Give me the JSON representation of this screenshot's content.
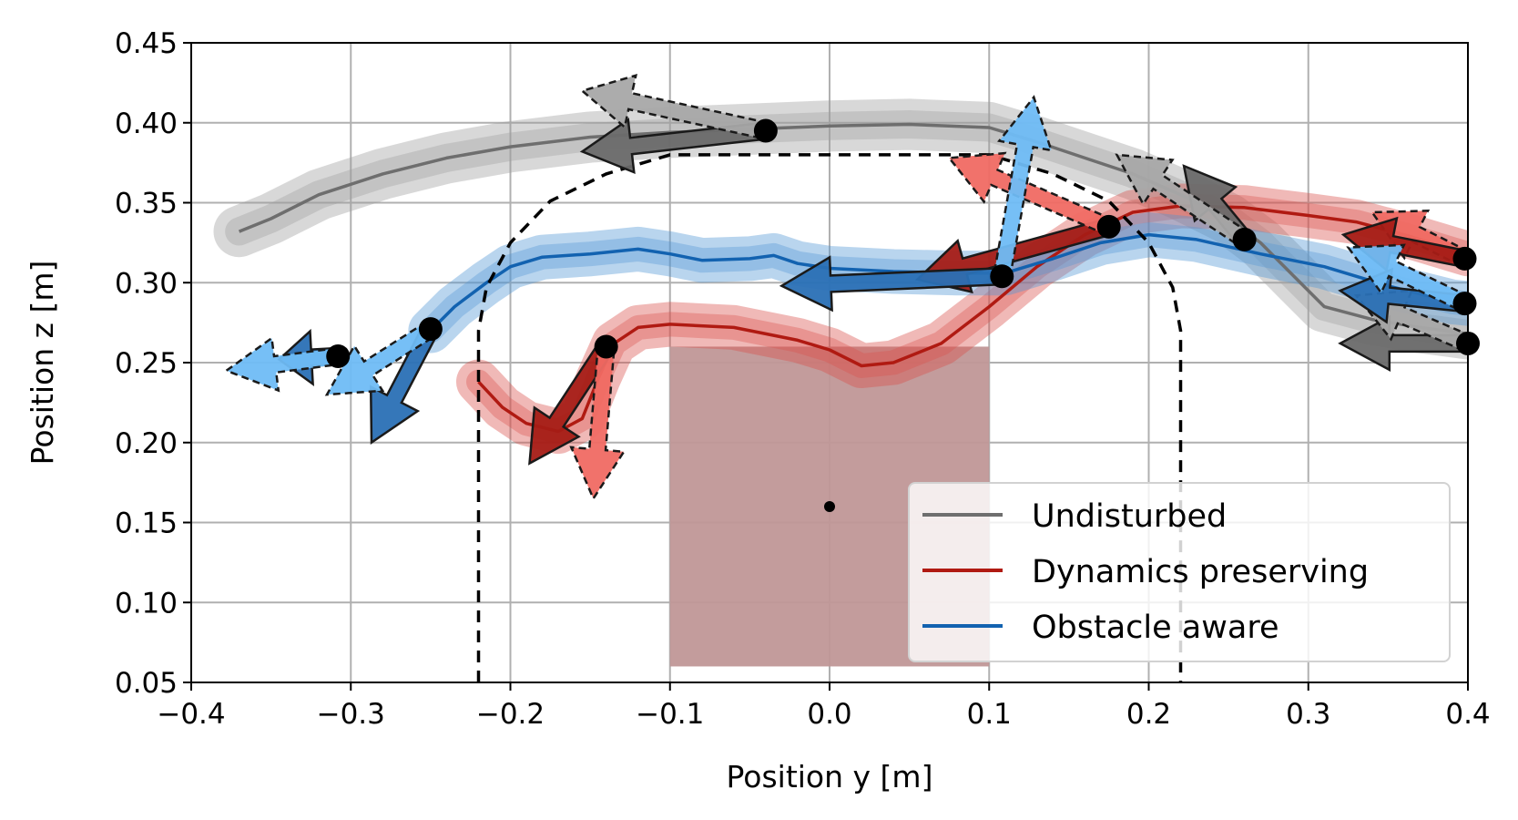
{
  "chart_data": {
    "type": "line",
    "xlabel": "Position y [m]",
    "ylabel": "Position z [m]",
    "xlim": [
      -0.4,
      0.4
    ],
    "ylim": [
      0.05,
      0.45
    ],
    "xticks": [
      -0.4,
      -0.3,
      -0.2,
      -0.1,
      0.0,
      0.1,
      0.2,
      0.3,
      0.4
    ],
    "xtick_labels": [
      "−0.4",
      "−0.3",
      "−0.2",
      "−0.1",
      "0.0",
      "0.1",
      "0.2",
      "0.3",
      "0.4"
    ],
    "yticks": [
      0.05,
      0.1,
      0.15,
      0.2,
      0.25,
      0.3,
      0.35,
      0.4,
      0.45
    ],
    "ytick_labels": [
      "0.05",
      "0.10",
      "0.15",
      "0.20",
      "0.25",
      "0.30",
      "0.35",
      "0.40",
      "0.45"
    ],
    "grid": true,
    "legend_position": "bottom-right",
    "colors": {
      "undisturbed": "#6e6e6e",
      "dynamics": "#b01a12",
      "obstacle": "#1262b0",
      "undisturbed_band": "#9e9e9e",
      "dynamics_band": "#d9504a",
      "obstacle_band": "#4f96d4",
      "arrow_gray_dark": "#6a6a6a",
      "arrow_gray_light": "#a8a8a8",
      "arrow_red_dark": "#a51c16",
      "arrow_red_light": "#f06a63",
      "arrow_blue_dark": "#2a70b5",
      "arrow_blue_light": "#6fbcf5",
      "obstacle_fill": "#c09797"
    },
    "obstacle": {
      "y_range": [
        -0.1,
        0.1
      ],
      "z_range": [
        0.06,
        0.26
      ],
      "center": [
        0.0,
        0.16
      ]
    },
    "boundary": [
      [
        -0.22,
        0.05
      ],
      [
        -0.22,
        0.27
      ],
      [
        -0.215,
        0.297
      ],
      [
        -0.2,
        0.325
      ],
      [
        -0.175,
        0.351
      ],
      [
        -0.14,
        0.368
      ],
      [
        -0.1,
        0.38
      ],
      [
        0.1,
        0.38
      ],
      [
        0.14,
        0.368
      ],
      [
        0.175,
        0.351
      ],
      [
        0.2,
        0.325
      ],
      [
        0.215,
        0.297
      ],
      [
        0.22,
        0.27
      ],
      [
        0.22,
        0.05
      ]
    ],
    "series": [
      {
        "name": "Undisturbed",
        "color_key": "undisturbed",
        "band_key": "undisturbed_band",
        "band_width": 0.016,
        "points": [
          [
            -0.37,
            0.332
          ],
          [
            -0.35,
            0.34
          ],
          [
            -0.32,
            0.355
          ],
          [
            -0.28,
            0.368
          ],
          [
            -0.24,
            0.378
          ],
          [
            -0.2,
            0.385
          ],
          [
            -0.15,
            0.391
          ],
          [
            -0.1,
            0.394
          ],
          [
            -0.05,
            0.396
          ],
          [
            0.0,
            0.398
          ],
          [
            0.05,
            0.399
          ],
          [
            0.1,
            0.397
          ],
          [
            0.13,
            0.388
          ],
          [
            0.16,
            0.378
          ],
          [
            0.19,
            0.368
          ],
          [
            0.22,
            0.355
          ],
          [
            0.25,
            0.34
          ],
          [
            0.27,
            0.325
          ],
          [
            0.29,
            0.305
          ],
          [
            0.31,
            0.285
          ],
          [
            0.34,
            0.277
          ],
          [
            0.37,
            0.272
          ],
          [
            0.4,
            0.268
          ]
        ]
      },
      {
        "name": "Dynamics preserving",
        "color_key": "dynamics",
        "band_key": "dynamics_band",
        "band_width": 0.014,
        "points": [
          [
            -0.22,
            0.238
          ],
          [
            -0.205,
            0.222
          ],
          [
            -0.19,
            0.212
          ],
          [
            -0.17,
            0.207
          ],
          [
            -0.155,
            0.215
          ],
          [
            -0.145,
            0.24
          ],
          [
            -0.135,
            0.262
          ],
          [
            -0.12,
            0.272
          ],
          [
            -0.1,
            0.274
          ],
          [
            -0.06,
            0.272
          ],
          [
            -0.02,
            0.264
          ],
          [
            0.0,
            0.258
          ],
          [
            0.02,
            0.248
          ],
          [
            0.04,
            0.25
          ],
          [
            0.07,
            0.262
          ],
          [
            0.1,
            0.285
          ],
          [
            0.13,
            0.31
          ],
          [
            0.16,
            0.33
          ],
          [
            0.19,
            0.344
          ],
          [
            0.22,
            0.348
          ],
          [
            0.26,
            0.347
          ],
          [
            0.3,
            0.342
          ],
          [
            0.33,
            0.338
          ],
          [
            0.36,
            0.33
          ],
          [
            0.4,
            0.318
          ]
        ]
      },
      {
        "name": "Obstacle aware",
        "color_key": "obstacle",
        "band_key": "obstacle_band",
        "band_width": 0.014,
        "points": [
          [
            -0.25,
            0.27
          ],
          [
            -0.235,
            0.285
          ],
          [
            -0.215,
            0.3
          ],
          [
            -0.2,
            0.31
          ],
          [
            -0.18,
            0.316
          ],
          [
            -0.15,
            0.318
          ],
          [
            -0.12,
            0.321
          ],
          [
            -0.1,
            0.318
          ],
          [
            -0.08,
            0.314
          ],
          [
            -0.05,
            0.315
          ],
          [
            -0.035,
            0.317
          ],
          [
            -0.02,
            0.312
          ],
          [
            0.0,
            0.309
          ],
          [
            0.04,
            0.307
          ],
          [
            0.08,
            0.306
          ],
          [
            0.11,
            0.306
          ],
          [
            0.14,
            0.315
          ],
          [
            0.17,
            0.325
          ],
          [
            0.2,
            0.33
          ],
          [
            0.23,
            0.327
          ],
          [
            0.27,
            0.318
          ],
          [
            0.31,
            0.31
          ],
          [
            0.35,
            0.298
          ],
          [
            0.39,
            0.288
          ],
          [
            0.4,
            0.287
          ]
        ]
      }
    ],
    "arrows": [
      {
        "from": [
          -0.04,
          0.395
        ],
        "to": [
          -0.155,
          0.382
        ],
        "shade": "arrow_gray_dark",
        "dashed": false
      },
      {
        "from": [
          -0.04,
          0.395
        ],
        "to": [
          -0.155,
          0.42
        ],
        "shade": "arrow_gray_light",
        "dashed": true
      },
      {
        "from": [
          0.26,
          0.327
        ],
        "to": [
          0.222,
          0.373
        ],
        "shade": "arrow_gray_dark",
        "dashed": false
      },
      {
        "from": [
          0.26,
          0.327
        ],
        "to": [
          0.18,
          0.38
        ],
        "shade": "arrow_gray_light",
        "dashed": true
      },
      {
        "from": [
          0.4,
          0.262
        ],
        "to": [
          0.32,
          0.262
        ],
        "shade": "arrow_gray_dark",
        "dashed": false
      },
      {
        "from": [
          0.4,
          0.262
        ],
        "to": [
          0.33,
          0.292
        ],
        "shade": "arrow_gray_light",
        "dashed": true
      },
      {
        "from": [
          0.175,
          0.335
        ],
        "to": [
          0.055,
          0.302
        ],
        "shade": "arrow_red_dark",
        "dashed": false
      },
      {
        "from": [
          0.175,
          0.335
        ],
        "to": [
          0.075,
          0.378
        ],
        "shade": "arrow_red_light",
        "dashed": true
      },
      {
        "from": [
          0.108,
          0.304
        ],
        "to": [
          -0.03,
          0.298
        ],
        "shade": "arrow_blue_dark",
        "dashed": false
      },
      {
        "from": [
          0.108,
          0.304
        ],
        "to": [
          0.128,
          0.416
        ],
        "shade": "arrow_blue_light",
        "dashed": true
      },
      {
        "from": [
          -0.14,
          0.26
        ],
        "to": [
          -0.188,
          0.187
        ],
        "shade": "arrow_red_dark",
        "dashed": false
      },
      {
        "from": [
          -0.14,
          0.26
        ],
        "to": [
          -0.148,
          0.165
        ],
        "shade": "arrow_red_light",
        "dashed": true
      },
      {
        "from": [
          -0.25,
          0.271
        ],
        "to": [
          -0.287,
          0.2
        ],
        "shade": "arrow_blue_dark",
        "dashed": false
      },
      {
        "from": [
          -0.25,
          0.271
        ],
        "to": [
          -0.315,
          0.23
        ],
        "shade": "arrow_blue_light",
        "dashed": true
      },
      {
        "from": [
          -0.308,
          0.254
        ],
        "to": [
          -0.345,
          0.252
        ],
        "shade": "arrow_blue_dark",
        "dashed": false
      },
      {
        "from": [
          -0.308,
          0.254
        ],
        "to": [
          -0.378,
          0.245
        ],
        "shade": "arrow_blue_light",
        "dashed": true
      },
      {
        "from": [
          0.398,
          0.315
        ],
        "to": [
          0.34,
          0.344
        ],
        "shade": "arrow_red_light",
        "dashed": true
      },
      {
        "from": [
          0.398,
          0.315
        ],
        "to": [
          0.322,
          0.33
        ],
        "shade": "arrow_red_dark",
        "dashed": false
      },
      {
        "from": [
          0.398,
          0.287
        ],
        "to": [
          0.32,
          0.295
        ],
        "shade": "arrow_blue_dark",
        "dashed": false
      },
      {
        "from": [
          0.398,
          0.287
        ],
        "to": [
          0.325,
          0.322
        ],
        "shade": "arrow_blue_light",
        "dashed": true
      }
    ],
    "markers": [
      [
        -0.04,
        0.395
      ],
      [
        0.26,
        0.327
      ],
      [
        0.4,
        0.262
      ],
      [
        0.175,
        0.335
      ],
      [
        0.108,
        0.304
      ],
      [
        -0.14,
        0.26
      ],
      [
        -0.25,
        0.271
      ],
      [
        -0.308,
        0.254
      ],
      [
        0.398,
        0.315
      ],
      [
        0.398,
        0.287
      ]
    ],
    "legend": [
      {
        "label": "Undisturbed",
        "color_key": "undisturbed"
      },
      {
        "label": "Dynamics preserving",
        "color_key": "dynamics"
      },
      {
        "label": "Obstacle aware",
        "color_key": "obstacle"
      }
    ]
  }
}
